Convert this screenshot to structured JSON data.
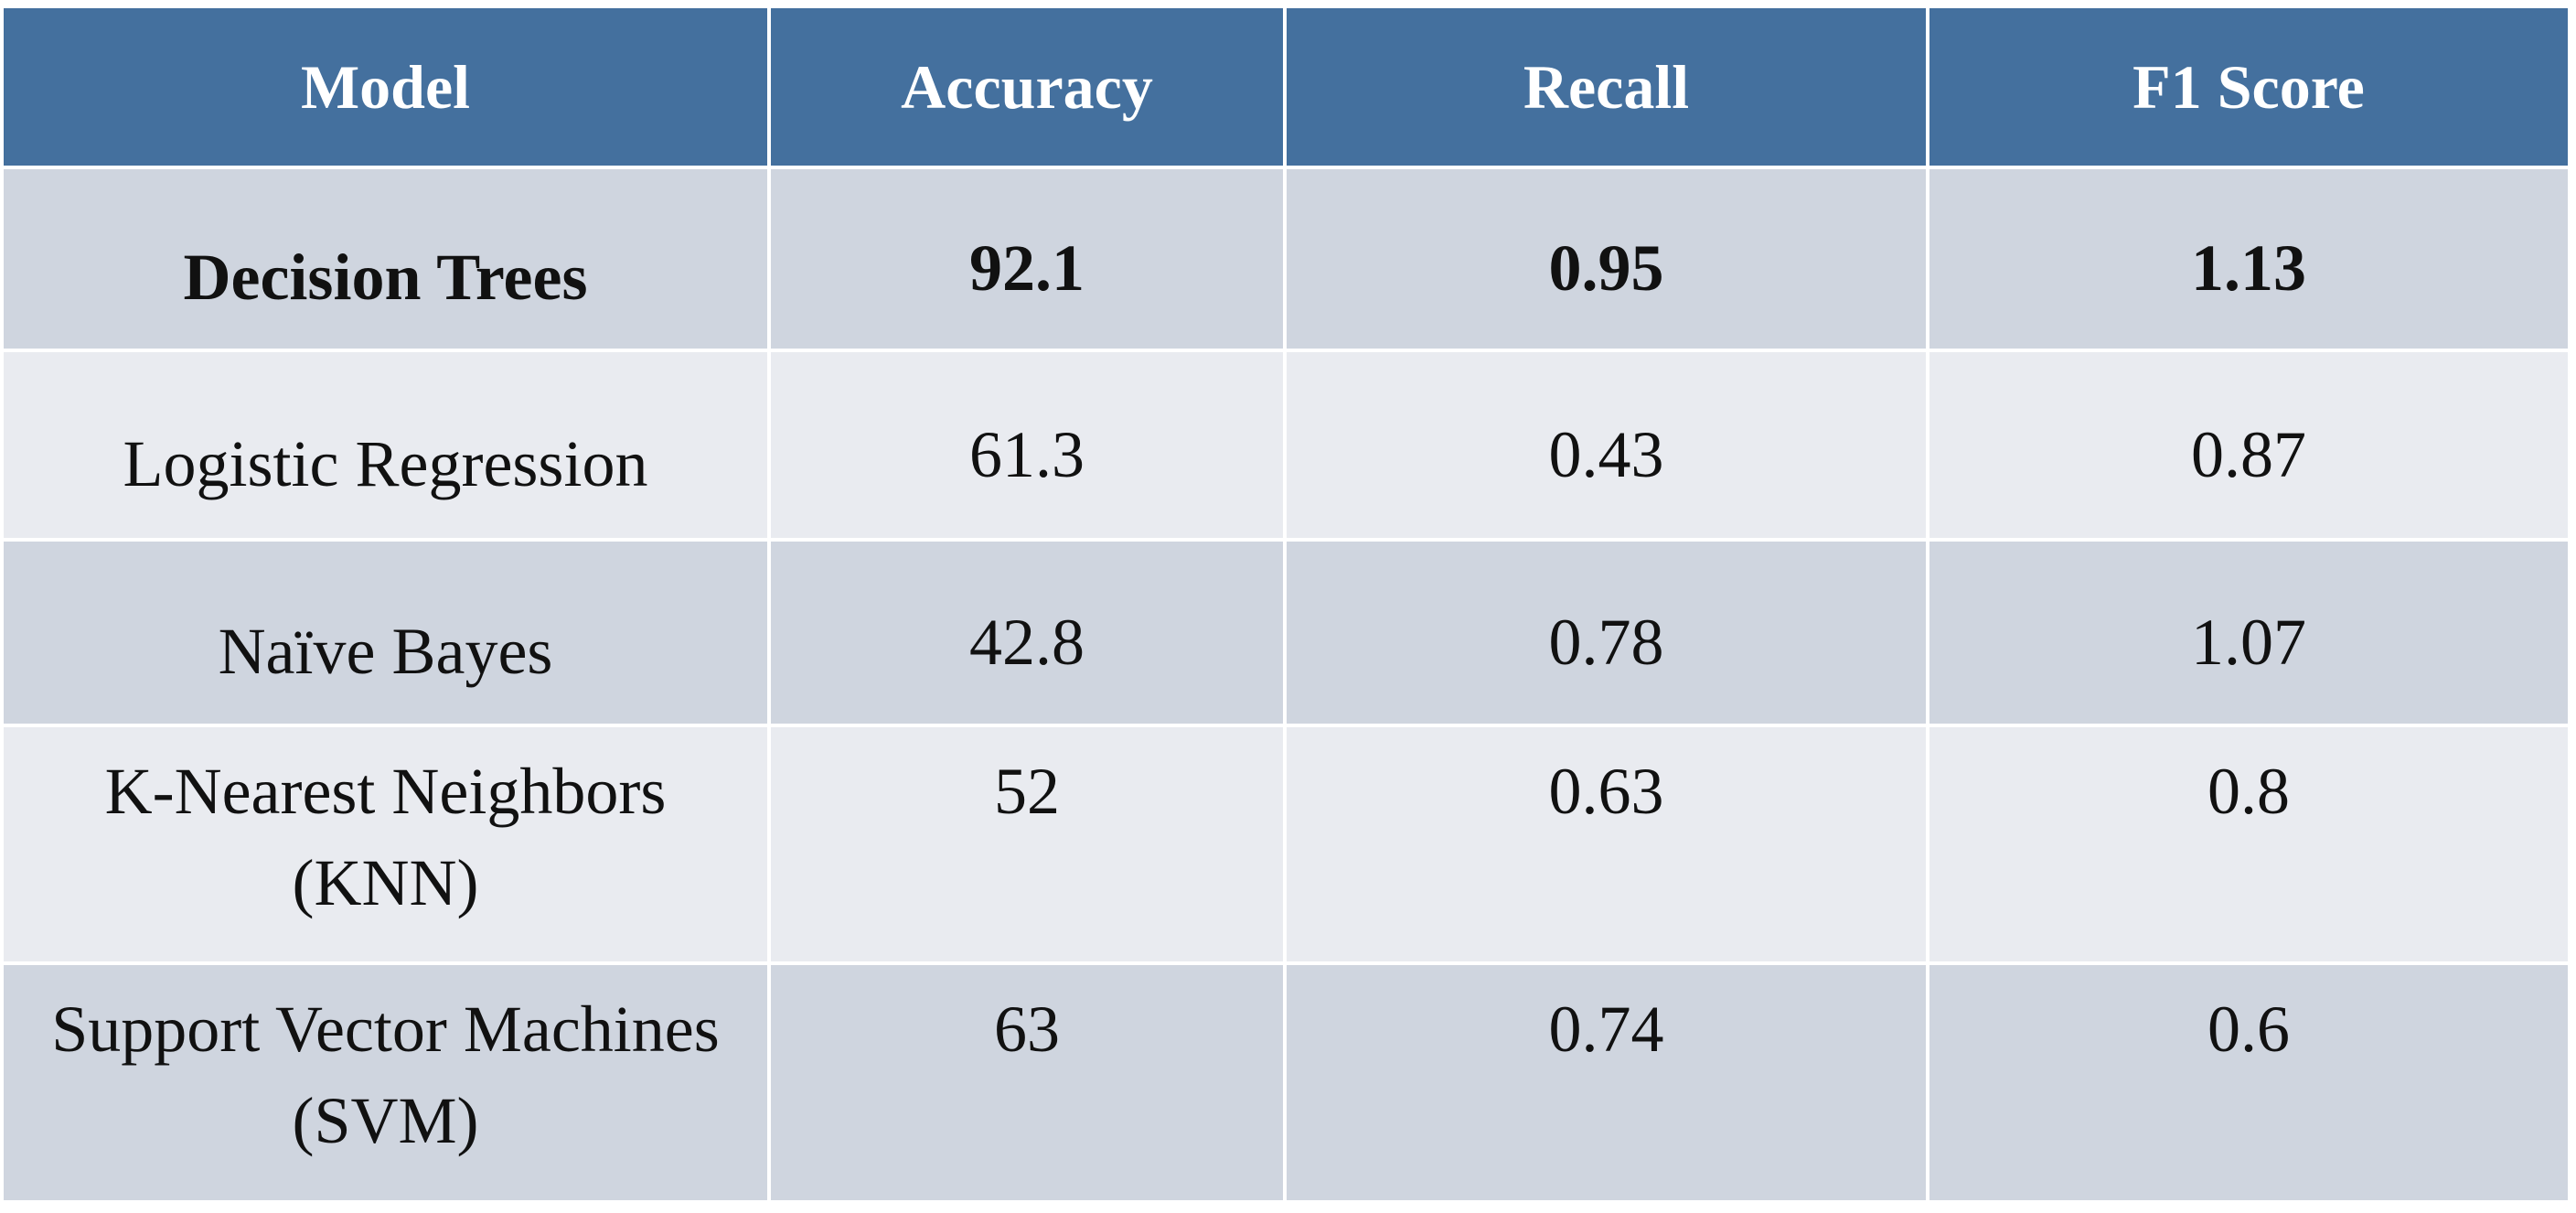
{
  "table": {
    "columns": [
      "Model",
      "Accuracy",
      "Recall",
      "F1 Score"
    ],
    "rows": [
      [
        "Decision Trees",
        92.1,
        0.95,
        1.13
      ],
      [
        "Logistic Regression",
        61.3,
        0.43,
        0.87
      ],
      [
        "Naïve Bayes",
        42.8,
        0.78,
        1.07
      ],
      [
        "K-Nearest Neighbors (KNN)",
        52,
        0.63,
        0.8
      ],
      [
        "Support Vector Machines (SVM)",
        63,
        0.74,
        0.6
      ]
    ]
  }
}
